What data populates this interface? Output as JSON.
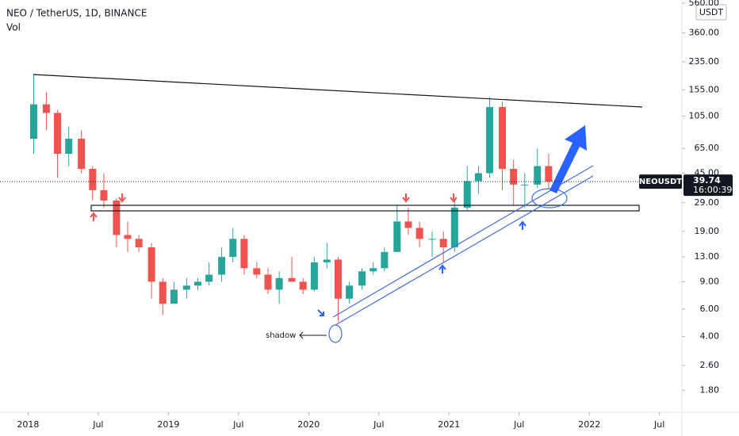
{
  "chart_data": {
    "type": "candlestick",
    "title": "NEO / TetherUS, 1D, BINANCE",
    "subtitle": "Vol",
    "currency": "USDT",
    "log_scale": true,
    "up_color": "#26a69a",
    "down_color": "#ef5350",
    "x": [
      2018.04,
      2018.13,
      2018.21,
      2018.29,
      2018.38,
      2018.46,
      2018.54,
      2018.63,
      2018.71,
      2018.79,
      2018.88,
      2018.96,
      2019.04,
      2019.13,
      2019.21,
      2019.29,
      2019.38,
      2019.46,
      2019.54,
      2019.63,
      2019.71,
      2019.79,
      2019.88,
      2019.96,
      2020.04,
      2020.13,
      2020.21,
      2020.29,
      2020.38,
      2020.46,
      2020.54,
      2020.63,
      2020.71,
      2020.79,
      2020.88,
      2020.96,
      2021.04,
      2021.13,
      2021.21,
      2021.29,
      2021.38,
      2021.46,
      2021.54,
      2021.63,
      2021.71
    ],
    "open": [
      75,
      125,
      110,
      60,
      75,
      48,
      35,
      30,
      18,
      17,
      15,
      9,
      6.5,
      8,
      8.5,
      9,
      10,
      13,
      17,
      11,
      10,
      8,
      9.5,
      9,
      8,
      12,
      12.5,
      7,
      8.5,
      10.5,
      11,
      14,
      22,
      20,
      17,
      17,
      15,
      27,
      40,
      45,
      120,
      48,
      38,
      38,
      50
    ],
    "high": [
      195,
      150,
      115,
      90,
      85,
      50,
      45,
      31,
      22,
      18,
      16,
      9.5,
      9,
      9.5,
      9.5,
      12,
      15,
      20,
      18,
      12,
      11,
      10.5,
      13,
      9.5,
      13,
      16,
      13,
      9,
      11,
      12,
      15,
      28,
      27,
      22,
      19,
      19,
      30,
      50,
      50,
      140,
      130,
      55,
      45,
      65,
      60
    ],
    "low": [
      60,
      85,
      42,
      50,
      45,
      30,
      27,
      15,
      14,
      14,
      7,
      5.5,
      6.5,
      7,
      8,
      8.5,
      9,
      12,
      10,
      9.5,
      7.5,
      6.5,
      9,
      7.5,
      7.8,
      11,
      5,
      6.5,
      8,
      10,
      10.5,
      14,
      18,
      15,
      13,
      12,
      14,
      26,
      33,
      42,
      35,
      28,
      27,
      36,
      36
    ],
    "close": [
      125,
      110,
      60,
      75,
      48,
      35,
      30,
      18,
      17,
      15,
      9,
      6.5,
      8,
      8.5,
      9,
      10,
      13,
      17,
      11,
      10,
      8,
      9.5,
      9,
      8,
      12,
      12.5,
      7,
      8.5,
      10.5,
      11,
      14,
      22,
      20,
      17,
      17,
      15,
      27,
      40,
      45,
      120,
      48,
      38,
      38,
      50,
      39.74
    ],
    "xlim": [
      2017.8,
      2022.66
    ],
    "xticks": [
      2018,
      {
        "value": 2018.5,
        "label": "Jul"
      },
      2019,
      {
        "value": 2019.5,
        "label": "Jul"
      },
      2020,
      {
        "value": 2020.5,
        "label": "Jul"
      },
      2021,
      {
        "value": 2021.5,
        "label": "Jul"
      },
      2022,
      {
        "value": 2022.5,
        "label": "Jul"
      }
    ],
    "ylim": [
      1.3,
      587
    ],
    "yticks": [
      {
        "value": 1.8,
        "label": "1.80"
      },
      {
        "value": 2.6,
        "label": "2.60"
      },
      {
        "value": 4,
        "label": "4.00"
      },
      {
        "value": 6,
        "label": "6.00"
      },
      {
        "value": 9,
        "label": "9.00"
      },
      {
        "value": 13,
        "label": "13.00"
      },
      {
        "value": 19,
        "label": "19.00"
      },
      {
        "value": 29,
        "label": "29.00"
      },
      {
        "value": 45,
        "label": "45.00"
      },
      {
        "value": 65,
        "label": "65.00"
      },
      {
        "value": 105,
        "label": "105.00"
      },
      {
        "value": 155,
        "label": "155.00"
      },
      {
        "value": 235,
        "label": "235.00"
      },
      {
        "value": 360,
        "label": "360.00"
      },
      {
        "value": 560,
        "label": "560.00"
      }
    ],
    "last_price": {
      "symbol": "NEOUSDT",
      "value": 39.74,
      "countdown": "16:00:39"
    },
    "annotation": "shadow"
  }
}
